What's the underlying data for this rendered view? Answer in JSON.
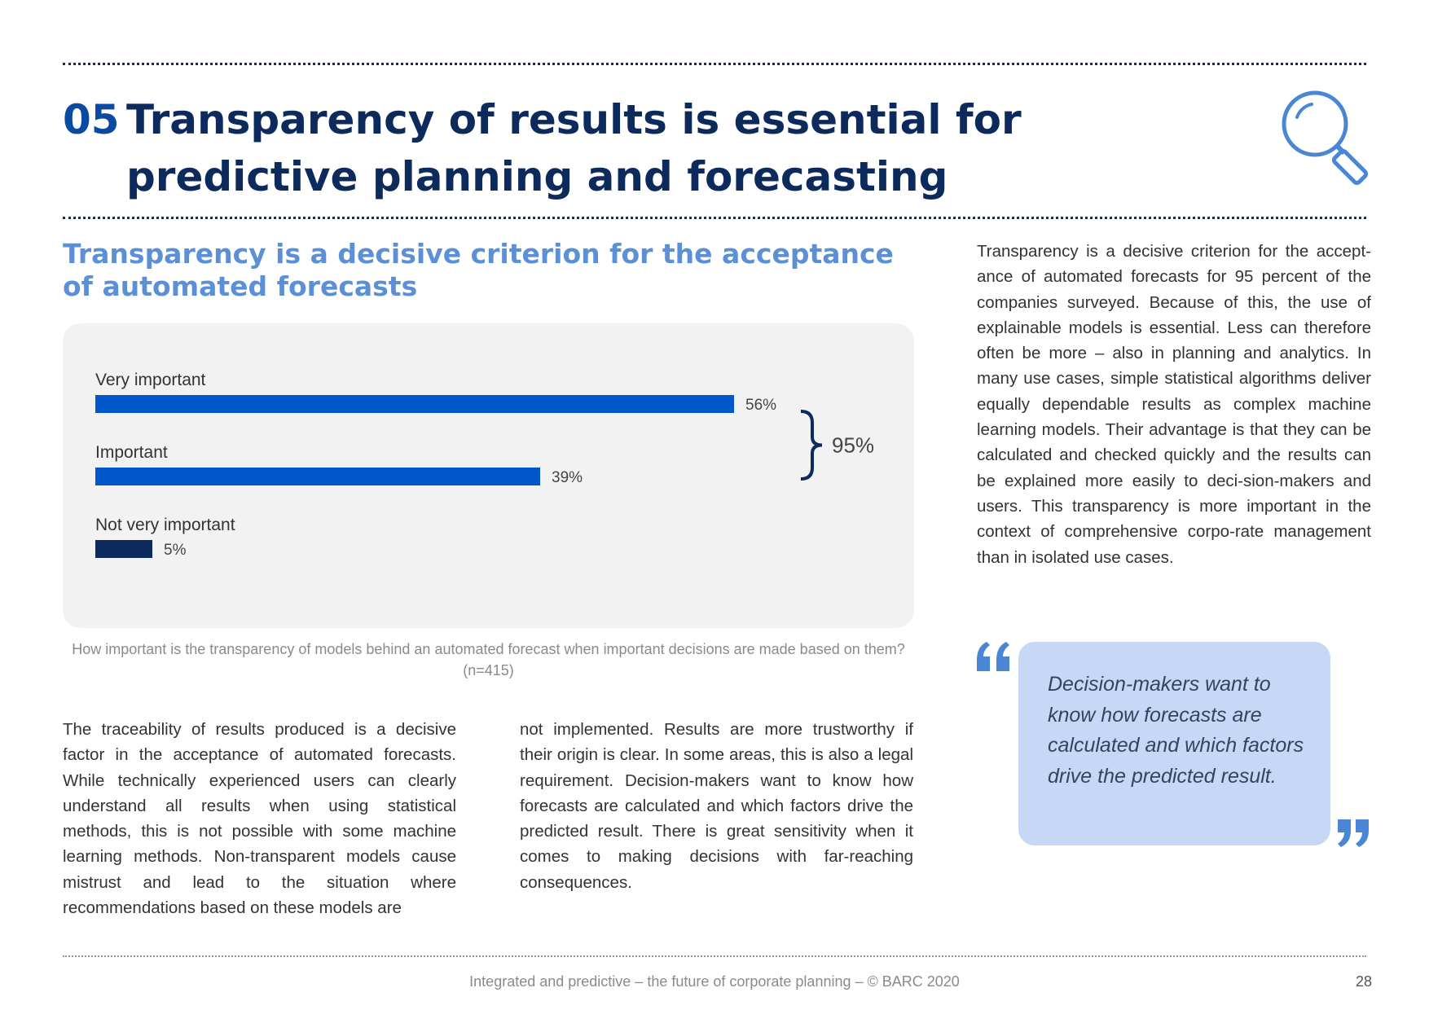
{
  "title": {
    "number": "05",
    "text": "Transparency of results is essential for predictive planning and forecasting"
  },
  "subtitle": "Transparency is a decisive criterion for the acceptance of automated forecasts",
  "chart_data": {
    "type": "bar",
    "orientation": "horizontal",
    "categories": [
      "Very important",
      "Important",
      "Not very important"
    ],
    "values": [
      56,
      39,
      5
    ],
    "value_labels": [
      "56%",
      "39%",
      "5%"
    ],
    "colors": [
      "#0057cc",
      "#0057cc",
      "#0d2a5c"
    ],
    "bracket_label": "95%",
    "xlim": [
      0,
      100
    ]
  },
  "caption": "How important is the transparency of models behind an automated forecast when important decisions are made based on them? (n=415)",
  "body": {
    "col1": "The traceability of results produced is a decisive factor in the acceptance of automated forecasts. While technically experienced users can clearly understand all results when using statistical methods, this is not possible with some machine learning methods. Non-transparent models cause mistrust and lead to the situation where recommendations based on these models are",
    "col2": "not implemented. Results are more trustworthy if their origin is clear. In some areas, this is also a legal requirement. Decision-makers want to know how forecasts are calculated and which factors drive the predicted result. There is great sensitivity when it comes to making decisions with far-reaching consequences."
  },
  "sidebar": {
    "text": "Transparency is a decisive criterion for the accept-ance of automated forecasts for 95 percent of the companies surveyed. Because of this, the use of explainable models is essential. Less can therefore often be more – also in planning and analytics. In many use cases, simple statistical algorithms deliver equally dependable results as complex machine learning models. Their advantage is that they can be calculated and checked quickly and the results can be explained more easily to deci-sion-makers and users. This transparency is more important in the context of comprehensive corpo-rate management than in isolated use cases."
  },
  "quote": {
    "text": "Decision-makers want to know how forecasts are calculated and which factors drive the predicted result."
  },
  "footer": {
    "text": "Integrated and predictive – the future of corporate planning  – © BARC 2020",
    "page_number": "28"
  },
  "icons": {
    "magnifier": "magnifying-glass-icon",
    "quote_open": "quote-open-icon",
    "quote_close": "quote-close-icon"
  },
  "colors": {
    "title_dark": "#0d2a5c",
    "title_number": "#0a4aa0",
    "subtitle": "#5b8fd6",
    "quote_bg": "#c6d8f5"
  }
}
